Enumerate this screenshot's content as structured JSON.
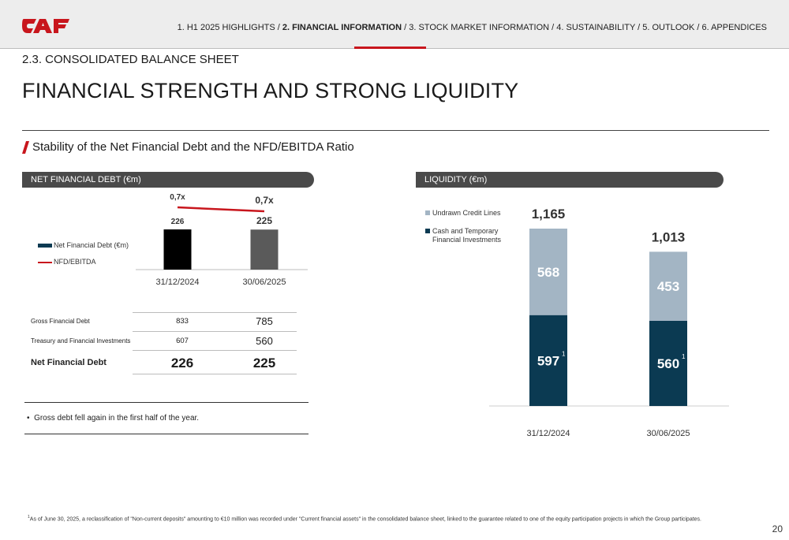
{
  "header": {
    "nav": {
      "item1": "1. H1 2025 HIGHLIGHTS /",
      "item2": "2. FINANCIAL INFORMATION",
      "item3": "/ 3. STOCK MARKET INFORMATION / 4. SUSTAINABILITY / 5. OUTLOOK / 6. APPENDICES"
    },
    "logo_text": "CAF"
  },
  "section_label": "2.3. CONSOLIDATED BALANCE SHEET",
  "page_title": "FINANCIAL STRENGTH AND STRONG LIQUIDITY",
  "subtitle": "Stability of the Net Financial Debt and the NFD/EBITDA Ratio",
  "colors": {
    "brand_red": "#c8161d",
    "header_gray": "#4a4a4a",
    "bar_dark_teal": "#0b3a52",
    "bar_light_blue": "#a3b5c4",
    "nfd_bar_2024": "#000000",
    "nfd_bar_2025": "#5a5a5a"
  },
  "chart_data": [
    {
      "type": "bar",
      "panel_title": "NET FINANCIAL DEBT (€m)",
      "categories": [
        "31/12/2024",
        "30/06/2025"
      ],
      "series": [
        {
          "name": "Net Financial Debt (€m)",
          "values": [
            226,
            225
          ],
          "value_labels": [
            "226",
            "225"
          ]
        },
        {
          "name": "NFD/EBITDA",
          "values": [
            0.7,
            0.7
          ],
          "value_labels": [
            "0,7x",
            "0,7x"
          ],
          "render": "line"
        }
      ],
      "legend_position": "left"
    },
    {
      "type": "bar",
      "stacked": true,
      "panel_title": "LIQUIDITY (€m)",
      "categories": [
        "31/12/2024",
        "30/06/2025"
      ],
      "series": [
        {
          "name": "Cash and Temporary Financial Investments",
          "values": [
            597,
            560
          ],
          "value_labels": [
            "597",
            "560"
          ],
          "superscript": "1"
        },
        {
          "name": "Undrawn Credit Lines",
          "values": [
            568,
            453
          ],
          "value_labels": [
            "568",
            "453"
          ]
        }
      ],
      "totals": [
        "1,165",
        "1,013"
      ],
      "legend_position": "top-left"
    }
  ],
  "nfd_table": {
    "rows": [
      {
        "label": "Gross Financial Debt",
        "v2024": "833",
        "v2025": "785"
      },
      {
        "label": "Treasury and Financial Investments",
        "v2024": "607",
        "v2025": "560"
      },
      {
        "label": "Net Financial Debt",
        "v2024": "226",
        "v2025": "225"
      }
    ]
  },
  "note": "Gross debt fell again in the first half of the year.",
  "footnote": "As of June 30, 2025, a reclassification of \"Non-current deposits\" amounting to €10 million was recorded under \"Current financial assets\" in the consolidated balance sheet, linked to the guarantee related to one of the equity participation projects in which the Group participates.",
  "footnote_marker": "1",
  "page_number": "20"
}
